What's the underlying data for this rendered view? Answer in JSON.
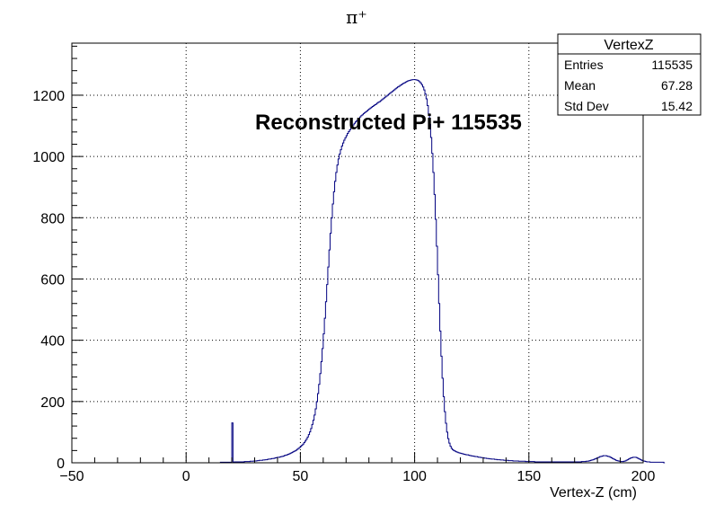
{
  "chart_data": {
    "type": "histogram",
    "title": "π⁺",
    "xlabel": "Vertex-Z (cm)",
    "ylabel": "",
    "xlim": [
      -50,
      200
    ],
    "ylim": [
      0,
      1370
    ],
    "xticks": [
      -50,
      0,
      50,
      100,
      150,
      200
    ],
    "xtick_labels": [
      "−50",
      "0",
      "50",
      "100",
      "150",
      "200"
    ],
    "yticks": [
      0,
      200,
      400,
      600,
      800,
      1000,
      1200
    ],
    "grid": true,
    "line_color": "#000080",
    "annotation": "Reconstructed Pi+ 115535",
    "stats_box": {
      "title": "VertexZ",
      "entries": [
        {
          "label": "Entries",
          "value": "115535"
        },
        {
          "label": "Mean",
          "value": "67.28"
        },
        {
          "label": "Std Dev",
          "value": "15.42"
        }
      ]
    },
    "bins": {
      "x_start": -40,
      "x_end": 190,
      "width": 0.5,
      "values": [
        0,
        0,
        0,
        0,
        0,
        0,
        0,
        0,
        0,
        0,
        0,
        0,
        0,
        0,
        0,
        0,
        0,
        0,
        0,
        0,
        0,
        0,
        0,
        0,
        0,
        0,
        0,
        0,
        0,
        0,
        0,
        0,
        0,
        0,
        0,
        0,
        0,
        0,
        0,
        0,
        0,
        0,
        0,
        0,
        0,
        0,
        0,
        0,
        0,
        0,
        0,
        0,
        0,
        0,
        0,
        0,
        0,
        0,
        0,
        0,
        0,
        0,
        0,
        0,
        0,
        0,
        0,
        0,
        0,
        0,
        0,
        0,
        0,
        0,
        0,
        0,
        0,
        0,
        0,
        0,
        0,
        0,
        0,
        0,
        0,
        0,
        0,
        0,
        0,
        0,
        0,
        0,
        0,
        0,
        0,
        0,
        0,
        0,
        0,
        0,
        0,
        0,
        0,
        0,
        0,
        0,
        0,
        0,
        0,
        0,
        2,
        2,
        2,
        2,
        2,
        2,
        2,
        2,
        2,
        2,
        130,
        2,
        3,
        3,
        3,
        3,
        3,
        3,
        3,
        3,
        3,
        4,
        4,
        4,
        4,
        4,
        5,
        5,
        5,
        6,
        6,
        6,
        7,
        7,
        8,
        8,
        8,
        9,
        9,
        10,
        10,
        11,
        12,
        12,
        13,
        14,
        14,
        15,
        16,
        17,
        18,
        18,
        19,
        20,
        21,
        22,
        24,
        25,
        26,
        28,
        29,
        31,
        33,
        35,
        37,
        39,
        41,
        44,
        47,
        50,
        53,
        57,
        61,
        66,
        71,
        77,
        84,
        92,
        101,
        112,
        125,
        139,
        156,
        176,
        199,
        226,
        256,
        291,
        330,
        373,
        421,
        472,
        526,
        582,
        639,
        695,
        749,
        799,
        845,
        885,
        919,
        948,
        972,
        992,
        1008,
        1022,
        1034,
        1044,
        1053,
        1061,
        1068,
        1075,
        1081,
        1087,
        1093,
        1098,
        1103,
        1108,
        1113,
        1117,
        1121,
        1125,
        1129,
        1133,
        1136,
        1140,
        1143,
        1146,
        1149,
        1152,
        1155,
        1158,
        1161,
        1163,
        1166,
        1169,
        1171,
        1174,
        1177,
        1179,
        1182,
        1185,
        1188,
        1191,
        1194,
        1197,
        1200,
        1203,
        1206,
        1209,
        1212,
        1215,
        1218,
        1221,
        1224,
        1227,
        1229,
        1232,
        1234,
        1237,
        1239,
        1241,
        1243,
        1245,
        1247,
        1248,
        1249,
        1250,
        1251,
        1251,
        1251,
        1250,
        1249,
        1247,
        1244,
        1240,
        1234,
        1227,
        1217,
        1204,
        1188,
        1166,
        1139,
        1105,
        1062,
        1010,
        948,
        876,
        795,
        707,
        614,
        520,
        430,
        348,
        276,
        216,
        167,
        129,
        100,
        79,
        64,
        54,
        47,
        43,
        40,
        38,
        36,
        35,
        33,
        32,
        31,
        30,
        29,
        28,
        27,
        26,
        26,
        25,
        24,
        23,
        22,
        22,
        21,
        20,
        20,
        19,
        18,
        18,
        17,
        17,
        16,
        15,
        15,
        14,
        14,
        13,
        13,
        12,
        12,
        12,
        11,
        11,
        10,
        10,
        10,
        9,
        9,
        9,
        8,
        8,
        8,
        8,
        7,
        7,
        7,
        7,
        6,
        6,
        6,
        6,
        6,
        5,
        5,
        5,
        5,
        5,
        5,
        4,
        4,
        4,
        4,
        4,
        4,
        4,
        4,
        3,
        3,
        3,
        3,
        3,
        3,
        3,
        3,
        3,
        3,
        3,
        3,
        3,
        3,
        3,
        3,
        3,
        3,
        3,
        3,
        3,
        3,
        3,
        3,
        3,
        3,
        3,
        3,
        3,
        3,
        3,
        3,
        3,
        3,
        3,
        3,
        3,
        3,
        3,
        3,
        3,
        4,
        4,
        4,
        4,
        5,
        5,
        6,
        7,
        8,
        9,
        10,
        12,
        13,
        15,
        17,
        18,
        20,
        21,
        22,
        23,
        23,
        23,
        22,
        21,
        20,
        18,
        16,
        14,
        12,
        10,
        8,
        7,
        6,
        5,
        4,
        4,
        4,
        5,
        6,
        8,
        10,
        12,
        14,
        16,
        17,
        18,
        18,
        18,
        17,
        15,
        13,
        11,
        9,
        7,
        6,
        5,
        4,
        3,
        3,
        3,
        2,
        2,
        2,
        2,
        2,
        2,
        2,
        2,
        2,
        2,
        2,
        2,
        0
      ]
    }
  }
}
